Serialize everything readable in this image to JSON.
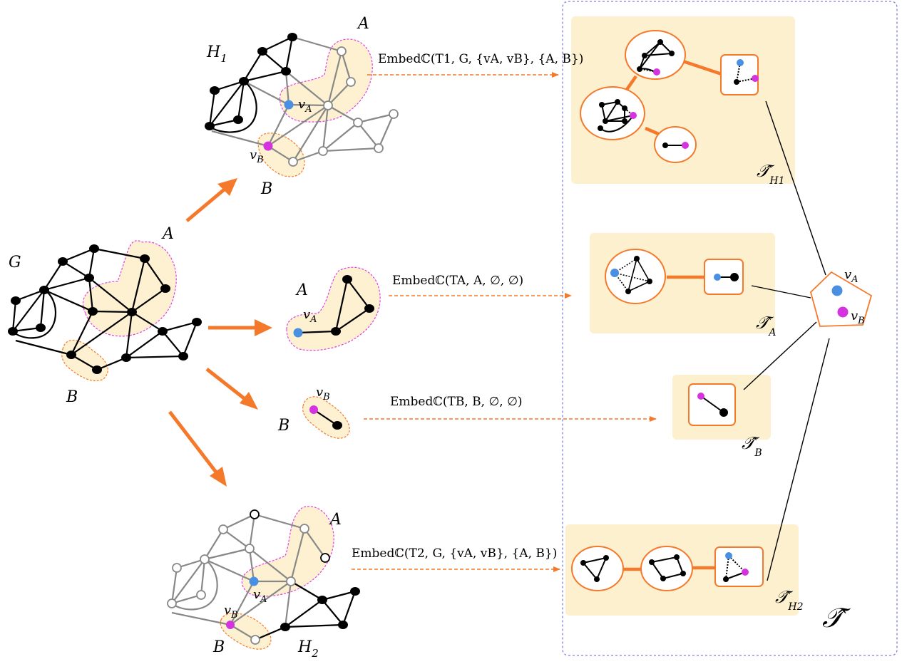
{
  "labels": {
    "G": "G",
    "A": "A",
    "B": "B",
    "H1": "H",
    "H1_sub": "1",
    "H2": "H",
    "H2_sub": "2",
    "vA": "v",
    "vA_sub": "A",
    "vB": "v",
    "vB_sub": "B",
    "T_hat": "𝒯̂",
    "T_H1_sub": "H1",
    "T_A_sub": "A",
    "T_B_sub": "B",
    "T_H2_sub": "H2"
  },
  "embed_calls": {
    "h1": "Embedℂ(T1, G, {vA, vB}, {A, B})",
    "a": "Embedℂ(TA, A, ∅, ∅)",
    "b": "Embedℂ(TB, B, ∅, ∅)",
    "h2": "Embedℂ(T2, G, {vA, vB}, {A, B})"
  },
  "colors": {
    "orange": "#f5792a",
    "highlight": "#fdf1d1",
    "tree_box": "#fdf0cf",
    "blue_vertex": "#4a90e2",
    "magenta_vertex": "#d633e0",
    "magenta_dash": "#e040e0",
    "frame": "#7f7fdf"
  }
}
